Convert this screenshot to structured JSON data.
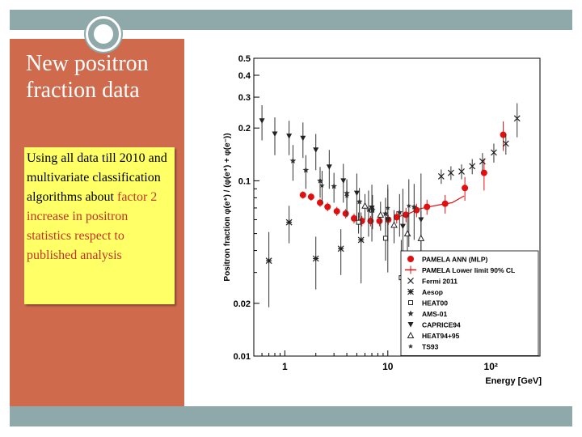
{
  "slide": {
    "title": "New positron fraction data",
    "body_black": "Using all data till 2010 and multivariate classification algorithms about",
    "body_red": "factor 2 increase in positron statistics respect to published analysis",
    "colors": {
      "bars": "#8fa9aa",
      "left_panel": "#cf6a4d",
      "textbox": "#ffff66",
      "red_text": "#c0352b"
    }
  },
  "chart_data": {
    "type": "scatter",
    "xscale": "log",
    "yscale": "log",
    "xlim": [
      0.5,
      300
    ],
    "ylim": [
      0.01,
      0.5
    ],
    "xticks": [
      "1",
      "10",
      "10²"
    ],
    "yticks": [
      "0.5",
      "0.4",
      "0.3",
      "0.2",
      "0.1",
      "0.02",
      "0.01"
    ],
    "ylabel": "Positron fraction φ(e⁺) / (φ(e⁺) + φ(e⁻))",
    "xlabel": "Energy [GeV]",
    "legend_position": "bottom-right",
    "series": [
      {
        "name": "PAMELA ANN (MLP)",
        "marker": "red-circle",
        "x": [
          1.5,
          1.8,
          2.2,
          2.6,
          3.2,
          3.9,
          4.7,
          5.6,
          6.8,
          8.3,
          10.1,
          12.2,
          15,
          19,
          24,
          36,
          56,
          86,
          132
        ],
        "y": [
          0.083,
          0.081,
          0.075,
          0.071,
          0.067,
          0.065,
          0.061,
          0.059,
          0.059,
          0.059,
          0.06,
          0.062,
          0.064,
          0.068,
          0.071,
          0.074,
          0.091,
          0.111,
          0.183
        ],
        "yerr": [
          0.004,
          0.004,
          0.004,
          0.004,
          0.004,
          0.004,
          0.004,
          0.004,
          0.004,
          0.004,
          0.004,
          0.005,
          0.006,
          0.006,
          0.007,
          0.009,
          0.014,
          0.023,
          0.035
        ]
      },
      {
        "name": "PAMELA Lower limit 90% CL",
        "marker": "red-line",
        "x": [
          12.2,
          16,
          20,
          25,
          32,
          42,
          55
        ],
        "y": [
          0.062,
          0.065,
          0.069,
          0.071,
          0.073,
          0.075,
          0.082
        ]
      },
      {
        "name": "Fermi 2011",
        "marker": "cross",
        "x": [
          33,
          41,
          52,
          66,
          83,
          107,
          140,
          180
        ],
        "y": [
          0.106,
          0.111,
          0.113,
          0.121,
          0.129,
          0.145,
          0.163,
          0.227
        ],
        "yerr": [
          0.01,
          0.01,
          0.011,
          0.012,
          0.015,
          0.018,
          0.022,
          0.05
        ]
      },
      {
        "name": "Aesop",
        "marker": "asterisk",
        "x": [
          0.7,
          1.1,
          2.0,
          3.5,
          5.5
        ],
        "y": [
          0.035,
          0.058,
          0.036,
          0.041,
          0.046
        ],
        "yerr": [
          0.016,
          0.014,
          0.012,
          0.012,
          0.02
        ]
      },
      {
        "name": "HEAT00",
        "marker": "open-square",
        "x": [
          5.2,
          7.0,
          9.5,
          13.5
        ],
        "y": [
          0.058,
          0.068,
          0.047,
          0.028
        ],
        "yerr": [
          0.008,
          0.01,
          0.012,
          0.018
        ]
      },
      {
        "name": "AMS-01",
        "marker": "star",
        "x": [
          1.2,
          1.6,
          2.2,
          3.0,
          4.0,
          5.3,
          7.1,
          9.5,
          13,
          18
        ],
        "y": [
          0.13,
          0.115,
          0.1,
          0.093,
          0.085,
          0.076,
          0.068,
          0.065,
          0.066,
          0.071
        ],
        "yerr": [
          0.03,
          0.025,
          0.02,
          0.018,
          0.016,
          0.015,
          0.015,
          0.015,
          0.018,
          0.025
        ]
      },
      {
        "name": "CAPRICE94",
        "marker": "filled-triangle-down",
        "x": [
          0.6,
          0.8,
          1.1,
          1.5,
          2.0,
          2.7,
          3.7,
          5.0,
          7.0,
          10,
          14,
          21
        ],
        "y": [
          0.22,
          0.185,
          0.18,
          0.175,
          0.15,
          0.12,
          0.1,
          0.085,
          0.07,
          0.06,
          0.055,
          0.06
        ],
        "yerr": [
          0.05,
          0.045,
          0.04,
          0.04,
          0.035,
          0.03,
          0.025,
          0.025,
          0.025,
          0.03,
          0.035,
          0.05
        ]
      },
      {
        "name": "HEAT94+95",
        "marker": "open-triangle",
        "x": [
          6.0,
          8.5,
          11.5,
          15.5,
          21
        ],
        "y": [
          0.072,
          0.064,
          0.056,
          0.05,
          0.047
        ],
        "yerr": [
          0.012,
          0.012,
          0.012,
          0.014,
          0.02
        ]
      },
      {
        "name": "TS93",
        "marker": "small-star",
        "x": [
          2.3,
          4.0,
          6.5,
          10,
          16
        ],
        "y": [
          0.094,
          0.082,
          0.068,
          0.07,
          0.072
        ],
        "yerr": [
          0.02,
          0.02,
          0.02,
          0.025,
          0.03
        ]
      }
    ]
  }
}
